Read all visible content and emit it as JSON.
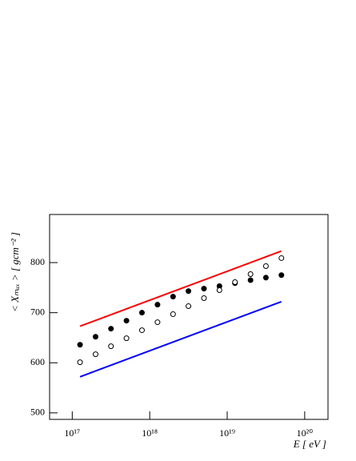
{
  "chart_data": {
    "type": "scatter",
    "xlabel": "E [ eV ]",
    "ylabel": "< Xₘₐₓ > [ gcm⁻² ]",
    "xscale": "log",
    "xlim": [
      5.1e+16,
      2e+20
    ],
    "ylim": [
      487,
      896
    ],
    "xticks": [
      {
        "value": 1e+17,
        "label": "10¹⁷"
      },
      {
        "value": 1e+18,
        "label": "10¹⁸"
      },
      {
        "value": 1e+19,
        "label": "10¹⁹"
      },
      {
        "value": 1e+20,
        "label": "10²⁰"
      }
    ],
    "yticks": [
      500,
      600,
      700,
      800
    ],
    "series": [
      {
        "kind": "line",
        "color": "#ff0000",
        "x": [
          1.26e+17,
          5e+19
        ],
        "values": [
          673,
          823
        ]
      },
      {
        "kind": "line",
        "color": "#0000ff",
        "x": [
          1.26e+17,
          5e+19
        ],
        "values": [
          572,
          722
        ]
      },
      {
        "kind": "filled",
        "color": "#000000",
        "x": [
          1.26e+17,
          2e+17,
          3.16e+17,
          5.01e+17,
          7.94e+17,
          1.26e+18,
          2e+18,
          3.16e+18,
          5.01e+18,
          7.94e+18,
          1.26e+19,
          2e+19,
          3.16e+19,
          5.01e+19
        ],
        "values": [
          636,
          652,
          668,
          684,
          700,
          716,
          732,
          743,
          748,
          753,
          759,
          765,
          770,
          775
        ]
      },
      {
        "kind": "open",
        "color": "#000000",
        "x": [
          1.26e+17,
          2e+17,
          3.16e+17,
          5.01e+17,
          7.94e+17,
          1.26e+18,
          2e+18,
          3.16e+18,
          5.01e+18,
          7.94e+18,
          1.26e+19,
          2e+19,
          3.16e+19,
          5.01e+19
        ],
        "values": [
          601,
          617,
          633,
          649,
          665,
          681,
          697,
          713,
          729,
          745,
          761,
          777,
          793,
          809
        ]
      }
    ]
  }
}
